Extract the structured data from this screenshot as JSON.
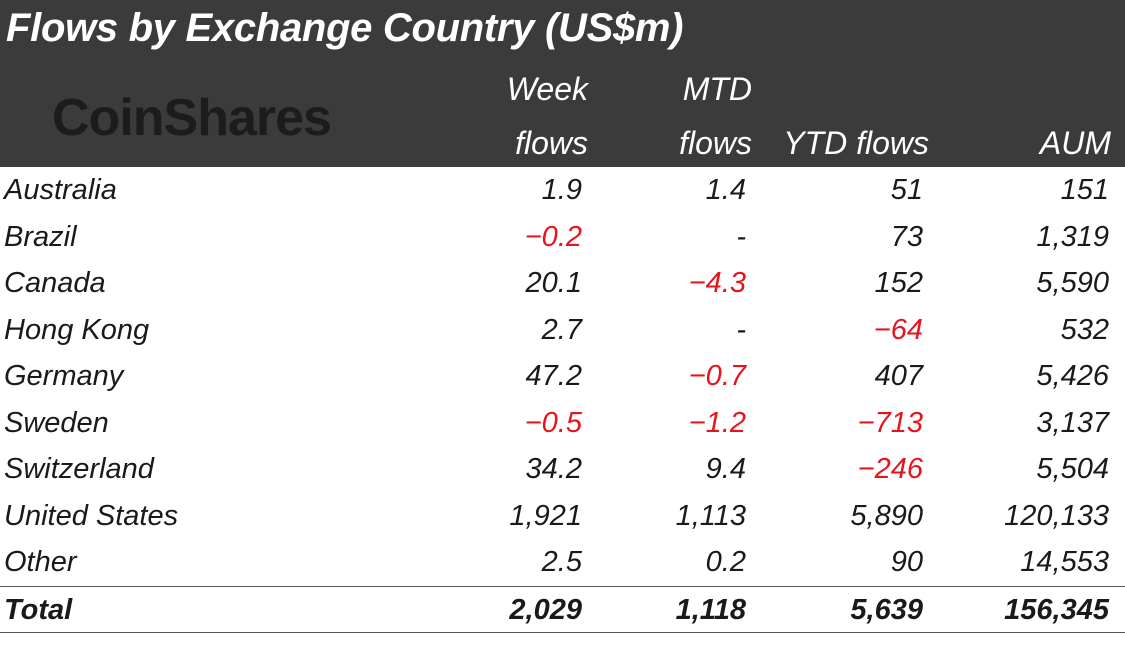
{
  "title": "Flows by Exchange Country (US$m)",
  "logo_text": "CoinShares",
  "colors": {
    "header_bg": "#3b3b3b",
    "negative": "#e8141c",
    "text": "#1a1a1a"
  },
  "chart_data": {
    "type": "table",
    "title": "Flows by Exchange Country (US$m)",
    "columns": [
      {
        "line1": "Week",
        "line2": "flows"
      },
      {
        "line1": "MTD",
        "line2": "flows"
      },
      {
        "line1": "",
        "line2": "YTD flows"
      },
      {
        "line1": "",
        "line2": "AUM"
      }
    ],
    "rows": [
      {
        "label": "Australia",
        "values": [
          "1.9",
          "1.4",
          "51",
          "151"
        ]
      },
      {
        "label": "Brazil",
        "values": [
          "-0.2",
          "-",
          "73",
          "1,319"
        ]
      },
      {
        "label": "Canada",
        "values": [
          "20.1",
          "-4.3",
          "152",
          "5,590"
        ]
      },
      {
        "label": "Hong Kong",
        "values": [
          "2.7",
          "-",
          "-64",
          "532"
        ]
      },
      {
        "label": "Germany",
        "values": [
          "47.2",
          "-0.7",
          "407",
          "5,426"
        ]
      },
      {
        "label": "Sweden",
        "values": [
          "-0.5",
          "-1.2",
          "-713",
          "3,137"
        ]
      },
      {
        "label": "Switzerland",
        "values": [
          "34.2",
          "9.4",
          "-246",
          "5,504"
        ]
      },
      {
        "label": "United States",
        "values": [
          "1,921",
          "1,113",
          "5,890",
          "120,133"
        ]
      },
      {
        "label": "Other",
        "values": [
          "2.5",
          "0.2",
          "90",
          "14,553"
        ]
      }
    ],
    "total": {
      "label": "Total",
      "values": [
        "2,029",
        "1,118",
        "5,639",
        "156,345"
      ]
    }
  }
}
